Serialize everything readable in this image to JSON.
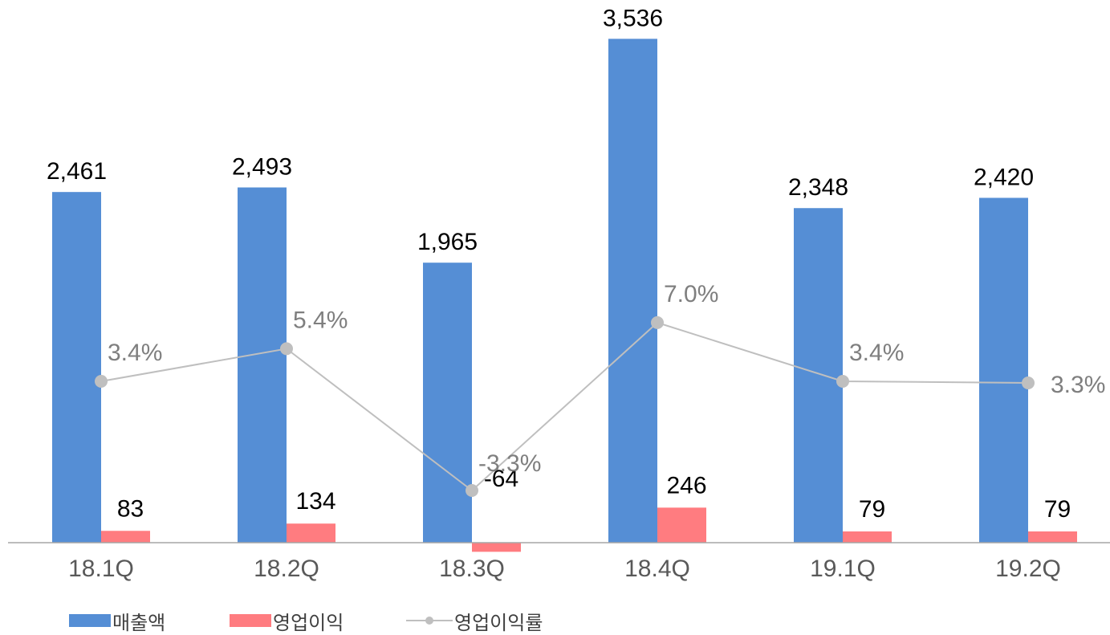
{
  "chart_data": {
    "type": "bar",
    "categories": [
      "18.1Q",
      "18.2Q",
      "18.3Q",
      "18.4Q",
      "19.1Q",
      "19.2Q"
    ],
    "series": [
      {
        "name": "매출액",
        "kind": "bar",
        "color": "#558ed5",
        "values": [
          2461,
          2493,
          1965,
          3536,
          2348,
          2420
        ],
        "labels": [
          "2,461",
          "2,493",
          "1,965",
          "3,536",
          "2,348",
          "2,420"
        ]
      },
      {
        "name": "영업이익",
        "kind": "bar",
        "color": "#ff7c80",
        "values": [
          83,
          134,
          -64,
          246,
          79,
          79
        ],
        "labels": [
          "83",
          "134",
          "-64",
          "246",
          "79",
          "79"
        ]
      },
      {
        "name": "영업이익률",
        "kind": "line",
        "color": "#bfbfbf",
        "values": [
          3.4,
          5.4,
          -3.3,
          7.0,
          3.4,
          3.3
        ],
        "labels": [
          "3.4%",
          "5.4%",
          "-3.3%",
          "7.0%",
          "3.4%",
          "3.3%"
        ]
      }
    ],
    "legend_position": "bottom-left",
    "grid": false
  }
}
